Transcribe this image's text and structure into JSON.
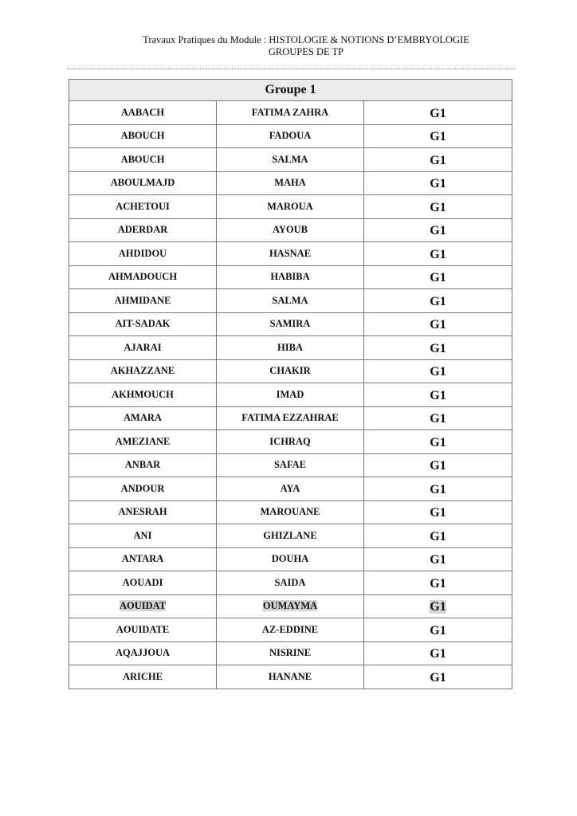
{
  "header": {
    "line1": "Travaux Pratiques du Module : HISTOLOGIE & NOTIONS D’EMBRYOLOGIE",
    "line2": "GROUPES DE TP"
  },
  "table": {
    "title": "Groupe 1",
    "highlight_color": "#d4d4d4",
    "rows": [
      {
        "nom": "AABACH",
        "prenom": "FATIMA ZAHRA",
        "groupe": "G1"
      },
      {
        "nom": "ABOUCH",
        "prenom": "FADOUA",
        "groupe": "G1"
      },
      {
        "nom": "ABOUCH",
        "prenom": "SALMA",
        "groupe": "G1"
      },
      {
        "nom": "ABOULMAJD",
        "prenom": "MAHA",
        "groupe": "G1"
      },
      {
        "nom": "ACHETOUI",
        "prenom": "MAROUA",
        "groupe": "G1"
      },
      {
        "nom": "ADERDAR",
        "prenom": "AYOUB",
        "groupe": "G1"
      },
      {
        "nom": "AHDIDOU",
        "prenom": "HASNAE",
        "groupe": "G1"
      },
      {
        "nom": "AHMADOUCH",
        "prenom": "HABIBA",
        "groupe": "G1"
      },
      {
        "nom": "AHMIDANE",
        "prenom": "SALMA",
        "groupe": "G1"
      },
      {
        "nom": "AIT-SADAK",
        "prenom": "SAMIRA",
        "groupe": "G1"
      },
      {
        "nom": "AJARAI",
        "prenom": "HIBA",
        "groupe": "G1"
      },
      {
        "nom": "AKHAZZANE",
        "prenom": "CHAKIR",
        "groupe": "G1"
      },
      {
        "nom": "AKHMOUCH",
        "prenom": "IMAD",
        "groupe": "G1"
      },
      {
        "nom": "AMARA",
        "prenom": "FATIMA EZZAHRAE",
        "groupe": "G1"
      },
      {
        "nom": "AMEZIANE",
        "prenom": "ICHRAQ",
        "groupe": "G1"
      },
      {
        "nom": "ANBAR",
        "prenom": "SAFAE",
        "groupe": "G1"
      },
      {
        "nom": "ANDOUR",
        "prenom": "AYA",
        "groupe": "G1"
      },
      {
        "nom": "ANESRAH",
        "prenom": "MAROUANE",
        "groupe": "G1"
      },
      {
        "nom": "ANI",
        "prenom": "GHIZLANE",
        "groupe": "G1"
      },
      {
        "nom": "ANTARA",
        "prenom": "DOUHA",
        "groupe": "G1"
      },
      {
        "nom": "AOUADI",
        "prenom": "SAIDA",
        "groupe": "G1"
      },
      {
        "nom": "AOUIDAT",
        "prenom": "OUMAYMA",
        "groupe": "G1",
        "highlighted": true
      },
      {
        "nom": "AOUIDATE",
        "prenom": "AZ-EDDINE",
        "groupe": "G1"
      },
      {
        "nom": "AQAJJOUA",
        "prenom": "NISRINE",
        "groupe": "G1"
      },
      {
        "nom": "ARICHE",
        "prenom": "HANANE",
        "groupe": "G1"
      }
    ]
  }
}
